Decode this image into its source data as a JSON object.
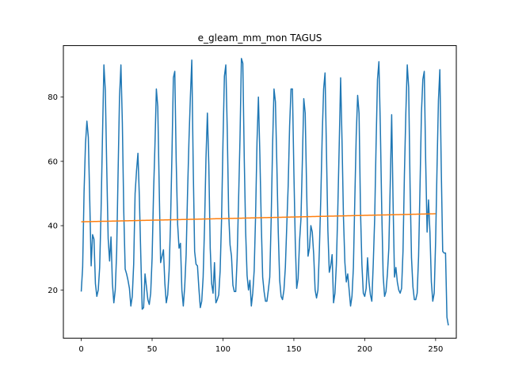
{
  "chart_data": {
    "type": "line",
    "title": "e_gleam_mm_mon TAGUS",
    "xlabel": "",
    "ylabel": "",
    "xlim": [
      -12.6,
      264.6
    ],
    "ylim": [
      5.0,
      96.0
    ],
    "xticks": [
      0,
      50,
      100,
      150,
      200,
      250
    ],
    "yticks": [
      20,
      40,
      60,
      80
    ],
    "grid": false,
    "legend": "none",
    "colors": {
      "series1": "#1f77b4",
      "series2": "#ff7f0e"
    },
    "series": [
      {
        "values": [
          19.5,
          27.0,
          50.5,
          65.5,
          72.5,
          67.5,
          48.0,
          27.5,
          37.2,
          35.8,
          22.0,
          18.0,
          20.0,
          27.0,
          45.0,
          68.0,
          90.0,
          82.0,
          58.0,
          36.0,
          29.0,
          36.5,
          22.0,
          16.0,
          20.0,
          32.0,
          56.5,
          80.0,
          90.0,
          72.0,
          44.5,
          26.5,
          25.0,
          23.0,
          20.5,
          15.0,
          18.0,
          28.0,
          50.0,
          57.0,
          62.5,
          49.0,
          31.0,
          14.0,
          14.5,
          25.0,
          21.0,
          17.0,
          15.5,
          19.0,
          30.0,
          50.0,
          65.0,
          82.5,
          77.0,
          52.0,
          28.5,
          30.5,
          32.5,
          22.0,
          16.0,
          18.5,
          26.0,
          41.0,
          62.0,
          86.0,
          88.0,
          60.0,
          40.5,
          33.0,
          34.5,
          20.0,
          15.0,
          21.0,
          31.0,
          50.0,
          66.5,
          80.0,
          91.5,
          58.5,
          32.0,
          28.0,
          27.5,
          20.5,
          14.5,
          16.5,
          24.0,
          40.0,
          61.0,
          75.0,
          59.0,
          33.0,
          22.0,
          19.0,
          28.5,
          16.0,
          17.0,
          18.5,
          26.0,
          42.0,
          66.0,
          86.5,
          90.0,
          70.0,
          44.0,
          34.0,
          30.5,
          21.5,
          19.5,
          19.5,
          30.0,
          48.0,
          67.0,
          92.0,
          90.5,
          61.0,
          38.0,
          24.5,
          20.0,
          23.0,
          15.0,
          19.0,
          26.0,
          43.0,
          66.0,
          80.0,
          62.5,
          41.0,
          24.0,
          19.5,
          16.5,
          16.5,
          20.0,
          24.0,
          42.0,
          65.0,
          82.5,
          78.5,
          59.0,
          38.0,
          23.0,
          18.0,
          17.0,
          20.0,
          27.0,
          40.0,
          52.5,
          71.0,
          82.5,
          82.5,
          57.0,
          35.0,
          20.5,
          23.5,
          35.0,
          42.0,
          60.0,
          79.5,
          75.0,
          51.5,
          30.5,
          33.0,
          40.0,
          38.0,
          31.0,
          20.0,
          17.5,
          20.0,
          32.5,
          48.5,
          68.0,
          82.5,
          87.5,
          63.0,
          38.5,
          25.5,
          27.5,
          31.0,
          16.0,
          19.0,
          28.0,
          45.0,
          65.0,
          86.0,
          66.0,
          42.5,
          28.5,
          22.5,
          25.0,
          20.0,
          15.0,
          18.0,
          27.0,
          48.0,
          68.0,
          80.5,
          75.0,
          45.0,
          28.0,
          19.0,
          18.0,
          20.5,
          30.0,
          22.5,
          18.5,
          16.5,
          28.0,
          42.0,
          65.0,
          85.5,
          91.0,
          71.0,
          45.0,
          24.5,
          18.0,
          19.5,
          25.0,
          33.0,
          53.0,
          74.5,
          47.0,
          24.0,
          27.0,
          22.5,
          20.0,
          19.0,
          20.5,
          32.0,
          56.0,
          75.0,
          90.0,
          83.0,
          52.0,
          30.0,
          21.0,
          17.0,
          17.0,
          19.0,
          30.5,
          52.0,
          75.0,
          85.5,
          88.0,
          60.0,
          38.0,
          48.0,
          38.0,
          22.5,
          16.5,
          19.0,
          35.0,
          58.0,
          79.0,
          88.5,
          57.5,
          32.0,
          31.5,
          31.5,
          11.5,
          9.0
        ]
      },
      {
        "values": [
          41.2,
          41.21,
          41.22,
          41.23,
          41.24,
          41.25,
          41.26,
          41.27,
          41.28,
          41.29,
          41.3,
          41.31,
          41.32,
          41.33,
          41.34,
          41.35,
          41.36,
          41.37,
          41.38,
          41.39,
          41.4,
          41.41,
          41.42,
          41.43,
          41.44,
          41.45,
          41.46,
          41.47,
          41.48,
          41.49,
          41.5,
          41.51,
          41.52,
          41.53,
          41.54,
          41.55,
          41.56,
          41.57,
          41.58,
          41.59,
          41.6,
          41.61,
          41.62,
          41.63,
          41.64,
          41.65,
          41.66,
          41.67,
          41.68,
          41.69,
          41.7,
          41.71,
          41.72,
          41.73,
          41.74,
          41.75,
          41.76,
          41.77,
          41.78,
          41.79,
          41.8,
          41.81,
          41.82,
          41.83,
          41.84,
          41.85,
          41.86,
          41.87,
          41.88,
          41.89,
          41.9,
          41.91,
          41.92,
          41.93,
          41.94,
          41.95,
          41.96,
          41.97,
          41.98,
          41.99,
          42.0,
          42.01,
          42.02,
          42.03,
          42.04,
          42.05,
          42.06,
          42.07,
          42.08,
          42.09,
          42.1,
          42.11,
          42.12,
          42.13,
          42.14,
          42.15,
          42.16,
          42.17,
          42.18,
          42.19,
          42.2,
          42.21,
          42.22,
          42.23,
          42.24,
          42.25,
          42.26,
          42.27,
          42.28,
          42.29,
          42.3,
          42.31,
          42.32,
          42.33,
          42.34,
          42.35,
          42.36,
          42.37,
          42.38,
          42.39,
          42.4,
          42.41,
          42.42,
          42.43,
          42.44,
          42.45,
          42.46,
          42.47,
          42.48,
          42.49,
          42.5,
          42.51,
          42.52,
          42.53,
          42.54,
          42.55,
          42.56,
          42.57,
          42.58,
          42.59,
          42.6,
          42.61,
          42.62,
          42.63,
          42.64,
          42.65,
          42.66,
          42.67,
          42.68,
          42.69,
          42.7,
          42.71,
          42.72,
          42.73,
          42.74,
          42.75,
          42.76,
          42.77,
          42.78,
          42.79,
          42.8,
          42.81,
          42.82,
          42.83,
          42.84,
          42.85,
          42.86,
          42.87,
          42.88,
          42.89,
          42.9,
          42.91,
          42.92,
          42.93,
          42.94,
          42.95,
          42.96,
          42.97,
          42.98,
          42.99,
          43.0,
          43.01,
          43.02,
          43.03,
          43.04,
          43.05,
          43.06,
          43.07,
          43.08,
          43.09,
          43.1,
          43.11,
          43.12,
          43.13,
          43.14,
          43.15,
          43.16,
          43.17,
          43.18,
          43.19,
          43.2,
          43.21,
          43.22,
          43.23,
          43.24,
          43.25,
          43.26,
          43.27,
          43.28,
          43.29,
          43.3,
          43.31,
          43.32,
          43.33,
          43.34,
          43.35,
          43.36,
          43.37,
          43.38,
          43.39,
          43.4,
          43.41,
          43.42,
          43.43,
          43.44,
          43.45,
          43.46,
          43.47,
          43.48,
          43.49,
          43.5,
          43.51,
          43.52,
          43.53,
          43.54,
          43.55,
          43.56,
          43.57,
          43.58,
          43.59,
          43.6,
          43.61,
          43.62,
          43.63,
          43.64,
          43.65,
          43.66,
          43.67,
          43.68,
          43.69,
          43.7
        ]
      }
    ]
  }
}
